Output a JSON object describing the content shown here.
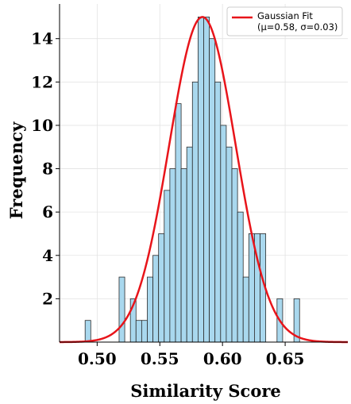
{
  "chart_data": {
    "type": "bar",
    "xlabel": "Similarity Score",
    "ylabel": "Frequency",
    "xlim": [
      0.47,
      0.7
    ],
    "ylim": [
      0,
      15.6
    ],
    "x_ticks": [
      "0.50",
      "0.55",
      "0.60",
      "0.65"
    ],
    "x_tick_values": [
      0.5,
      0.55,
      0.6,
      0.65
    ],
    "y_ticks": [
      "2",
      "4",
      "6",
      "8",
      "10",
      "12",
      "14"
    ],
    "y_tick_values": [
      2,
      4,
      6,
      8,
      10,
      12,
      14
    ],
    "grid": true,
    "bin_width": 0.0045,
    "bins": [
      {
        "x": 0.4904,
        "count": 1
      },
      {
        "x": 0.5175,
        "count": 3
      },
      {
        "x": 0.5265,
        "count": 2
      },
      {
        "x": 0.531,
        "count": 1
      },
      {
        "x": 0.5355,
        "count": 1
      },
      {
        "x": 0.54,
        "count": 3
      },
      {
        "x": 0.5445,
        "count": 4
      },
      {
        "x": 0.549,
        "count": 5
      },
      {
        "x": 0.5535,
        "count": 7
      },
      {
        "x": 0.558,
        "count": 8
      },
      {
        "x": 0.5625,
        "count": 11
      },
      {
        "x": 0.567,
        "count": 8
      },
      {
        "x": 0.5715,
        "count": 9
      },
      {
        "x": 0.576,
        "count": 12
      },
      {
        "x": 0.5805,
        "count": 15
      },
      {
        "x": 0.585,
        "count": 15
      },
      {
        "x": 0.5895,
        "count": 14
      },
      {
        "x": 0.594,
        "count": 12
      },
      {
        "x": 0.5985,
        "count": 10
      },
      {
        "x": 0.603,
        "count": 9
      },
      {
        "x": 0.6075,
        "count": 8
      },
      {
        "x": 0.612,
        "count": 6
      },
      {
        "x": 0.6165,
        "count": 3
      },
      {
        "x": 0.621,
        "count": 5
      },
      {
        "x": 0.6255,
        "count": 5
      },
      {
        "x": 0.63,
        "count": 5
      },
      {
        "x": 0.6435,
        "count": 2
      },
      {
        "x": 0.657,
        "count": 2
      }
    ],
    "fit": {
      "mu": 0.584,
      "sigma": 0.0265,
      "peak": 15.0,
      "legend_line1": "Gaussian Fit",
      "legend_line2": "(μ=0.58, σ=0.03)",
      "color": "#e8141a"
    },
    "bar_color": "#a9d8ee",
    "bar_edge_color": "#2b2b2b",
    "legend_position": "upper right"
  }
}
